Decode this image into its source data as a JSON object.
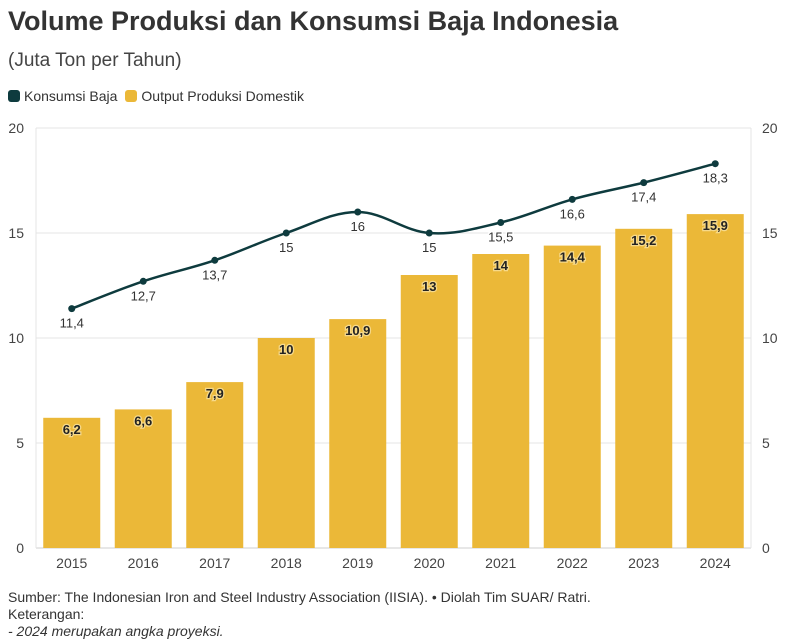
{
  "title": "Volume Produksi dan Konsumsi Baja Indonesia",
  "subtitle": "(Juta Ton per Tahun)",
  "colors": {
    "line": "#0e3b3e",
    "bar": "#ebb838",
    "grid": "#e4e4e4",
    "text": "#333333"
  },
  "chart_data": {
    "type": "bar",
    "categories": [
      "2015",
      "2016",
      "2017",
      "2018",
      "2019",
      "2020",
      "2021",
      "2022",
      "2023",
      "2024"
    ],
    "series": [
      {
        "name": "Konsumsi Baja",
        "type": "line",
        "values": [
          11.4,
          12.7,
          13.7,
          15,
          16,
          15,
          15.5,
          16.6,
          17.4,
          18.3
        ],
        "labels": [
          "11,4",
          "12,7",
          "13,7",
          "15",
          "16",
          "15",
          "15,5",
          "16,6",
          "17,4",
          "18,3"
        ]
      },
      {
        "name": "Output Produksi Domestik",
        "type": "bar",
        "values": [
          6.2,
          6.6,
          7.9,
          10,
          10.9,
          13,
          14,
          14.4,
          15.2,
          15.9
        ],
        "labels": [
          "6,2",
          "6,6",
          "7,9",
          "10",
          "10,9",
          "13",
          "14",
          "14,4",
          "15,2",
          "15,9"
        ]
      }
    ],
    "ylim": [
      0,
      20
    ],
    "yticks": [
      0,
      5,
      10,
      15,
      20
    ],
    "legend": "top-left",
    "grid": true
  },
  "footer": {
    "source": "Sumber: The Indonesian Iron and Steel Industry Association (IISIA). • Diolah Tim SUAR/ Ratri.",
    "note_title": "Keterangan:",
    "note_item": "- 2024 merupakan angka proyeksi."
  }
}
